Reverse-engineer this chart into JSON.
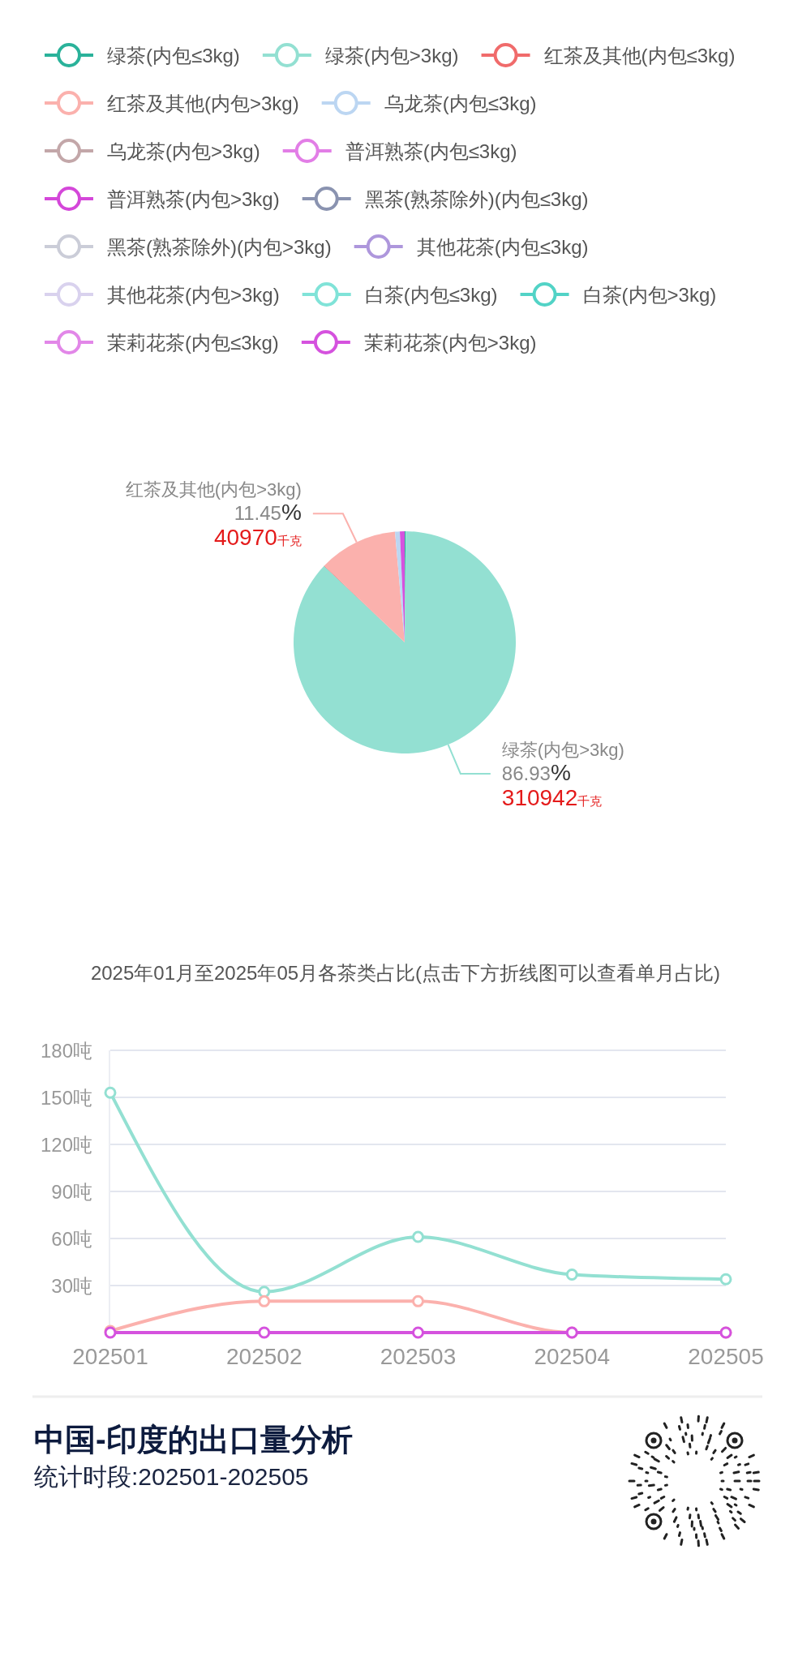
{
  "chart_data": [
    {
      "type": "pie",
      "title": "2025年01月至2025年05月各茶类占比(点击下方折线图可以查看单月占比)",
      "categories": [
        null,
        "绿茶(内包>3kg)",
        null,
        "红茶及其他(内包>3kg)",
        null,
        null
      ],
      "values": [
        500,
        310942,
        300,
        40970,
        2500,
        2488
      ],
      "colors": [
        "#2ab29a",
        "#93e0d2",
        "#f06b6b",
        "#fbb1ad",
        "#bcd6f2",
        "#d552de"
      ],
      "value_labels": [
        null,
        "86.93%\n310942千克",
        null,
        "11.45%\n40970千克",
        null,
        null
      ]
    },
    {
      "type": "line",
      "title": "中国-印度的出口量分析",
      "subtitle": "统计时段:202501-202505",
      "categories": [
        "202501",
        "202502",
        "202503",
        "202504",
        "202505"
      ],
      "series": [
        {
          "name": "绿茶(内包≤3kg)",
          "color": "#2ab29a",
          "values": [
            null,
            null,
            null,
            null,
            null
          ]
        },
        {
          "name": "绿茶(内包>3kg)",
          "color": "#93e0d2",
          "values": [
            153,
            26,
            61,
            37,
            34
          ]
        },
        {
          "name": "红茶及其他(内包≤3kg)",
          "color": "#f06b6b",
          "values": [
            null,
            null,
            null,
            null,
            null
          ]
        },
        {
          "name": "红茶及其他(内包>3kg)",
          "color": "#fbb1ad",
          "values": [
            1,
            20,
            20,
            0,
            0
          ]
        },
        {
          "name": "乌龙茶(内包≤3kg)",
          "color": "#bcd6f2",
          "values": [
            null,
            null,
            null,
            null,
            null
          ]
        },
        {
          "name": "乌龙茶(内包>3kg)",
          "color": "#c3a7a9",
          "values": [
            null,
            null,
            null,
            null,
            null
          ]
        },
        {
          "name": "普洱熟茶(内包≤3kg)",
          "color": "#e27ee6",
          "values": [
            null,
            null,
            null,
            null,
            null
          ]
        },
        {
          "name": "普洱熟茶(内包>3kg)",
          "color": "#d447d9",
          "values": [
            null,
            null,
            null,
            null,
            null
          ]
        },
        {
          "name": "黑茶(熟茶除外)(内包≤3kg)",
          "color": "#8a93b0",
          "values": [
            null,
            null,
            null,
            null,
            null
          ]
        },
        {
          "name": "黑茶(熟茶除外)(内包>3kg)",
          "color": "#cbcdd8",
          "values": [
            null,
            null,
            null,
            null,
            null
          ]
        },
        {
          "name": "其他花茶(内包≤3kg)",
          "color": "#ae97dc",
          "values": [
            null,
            null,
            null,
            null,
            null
          ]
        },
        {
          "name": "其他花茶(内包>3kg)",
          "color": "#d9d2ee",
          "values": [
            null,
            null,
            null,
            null,
            null
          ]
        },
        {
          "name": "白茶(内包≤3kg)",
          "color": "#80e3d8",
          "values": [
            null,
            null,
            null,
            null,
            null
          ]
        },
        {
          "name": "白茶(内包>3kg)",
          "color": "#52d3c6",
          "values": [
            null,
            null,
            null,
            null,
            null
          ]
        },
        {
          "name": "茉莉花茶(内包≤3kg)",
          "color": "#e287e8",
          "values": [
            null,
            null,
            null,
            null,
            null
          ]
        },
        {
          "name": "茉莉花茶(内包>3kg)",
          "color": "#d552de",
          "values": [
            0,
            0,
            0,
            0,
            0
          ]
        }
      ],
      "ylim": [
        0,
        180
      ],
      "yticks": [
        {
          "value": 30,
          "label": "30吨"
        },
        {
          "value": 60,
          "label": "60吨"
        },
        {
          "value": 90,
          "label": "90吨"
        },
        {
          "value": 120,
          "label": "120吨"
        },
        {
          "value": 150,
          "label": "150吨"
        },
        {
          "value": 180,
          "label": "180吨"
        }
      ],
      "grid": "y",
      "legend": "top",
      "marker": "circle"
    }
  ]
}
